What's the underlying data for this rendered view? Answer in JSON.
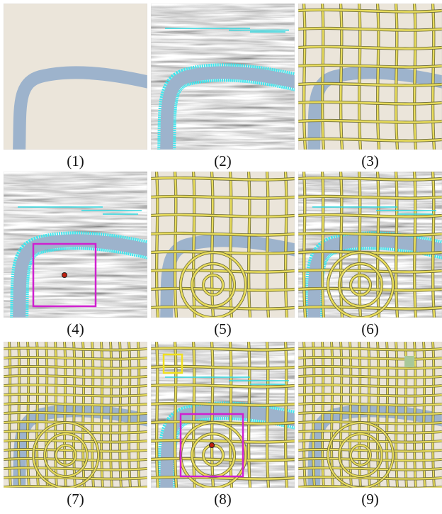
{
  "panels": [
    {
      "label": "(1)"
    },
    {
      "label": "(2)"
    },
    {
      "label": "(3)"
    },
    {
      "label": "(4)"
    },
    {
      "label": "(5)"
    },
    {
      "label": "(6)"
    },
    {
      "label": "(7)"
    },
    {
      "label": "(8)"
    },
    {
      "label": "(9)"
    }
  ]
}
